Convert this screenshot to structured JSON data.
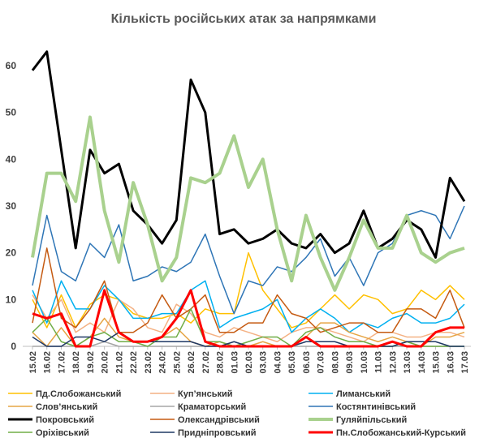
{
  "chart_data": {
    "type": "line",
    "title": "Кількість російських атак за напрямками",
    "categories": [
      "15.02",
      "16.02",
      "17.02",
      "18.02",
      "19.02",
      "20.02",
      "21.02",
      "22.02",
      "23.02",
      "24.02",
      "25.02",
      "26.02",
      "27.02",
      "28.02",
      "01.03",
      "02.03",
      "03.03",
      "04.03",
      "05.03",
      "06.03",
      "07.03",
      "08.03",
      "09.03",
      "10.03",
      "11.03",
      "12.03",
      "13.03",
      "14.03",
      "15.03",
      "16.03",
      "17.03"
    ],
    "ylim": [
      0,
      65
    ],
    "yticks": [
      0,
      10,
      20,
      30,
      40,
      50,
      60
    ],
    "grid": false,
    "series": [
      {
        "name": "Пд.Слобожанський",
        "color": "#ffc000",
        "line_width": 1.5,
        "values": [
          10,
          4,
          11,
          4,
          9,
          11,
          10,
          7,
          6,
          6,
          7,
          5,
          8,
          7,
          7,
          20,
          12,
          8,
          4,
          5,
          8,
          11,
          8,
          11,
          10,
          7,
          8,
          12,
          10,
          13,
          10
        ]
      },
      {
        "name": "Куп’янський",
        "color": "#f4b183",
        "line_width": 1.5,
        "values": [
          11,
          6,
          10,
          3,
          5,
          3,
          10,
          8,
          4,
          3,
          9,
          7,
          3,
          2,
          4,
          3,
          2,
          1,
          3,
          4,
          4,
          3,
          2,
          1,
          3,
          3,
          2,
          2,
          3,
          3,
          2
        ]
      },
      {
        "name": "Лиманський",
        "color": "#00b0f0",
        "line_width": 1.5,
        "values": [
          12,
          5,
          14,
          8,
          8,
          13,
          10,
          6,
          6,
          7,
          7,
          12,
          14,
          4,
          6,
          7,
          8,
          10,
          3,
          6,
          8,
          6,
          3,
          5,
          4,
          6,
          7,
          5,
          5,
          6,
          9
        ]
      },
      {
        "name": "Слов’янський",
        "color": "#e6a545",
        "line_width": 1.5,
        "values": [
          3,
          0,
          4,
          0,
          2,
          6,
          2,
          1,
          1,
          2,
          4,
          1,
          0,
          1,
          0,
          0,
          1,
          0,
          0,
          2,
          5,
          5,
          3,
          2,
          1,
          2,
          1,
          0,
          2,
          2,
          3
        ]
      },
      {
        "name": "Краматорський",
        "color": "#a5a5a5",
        "line_width": 1.5,
        "values": [
          0,
          0,
          0,
          0,
          0,
          1,
          0,
          0,
          0,
          0,
          0,
          0,
          0,
          0,
          0,
          0,
          0,
          0,
          0,
          0,
          0,
          0,
          0,
          0,
          0,
          0,
          0,
          0,
          0,
          0,
          0
        ]
      },
      {
        "name": "Костянтинівський",
        "color": "#2e75b6",
        "line_width": 1.5,
        "values": [
          13,
          28,
          16,
          14,
          22,
          19,
          26,
          14,
          15,
          17,
          16,
          18,
          24,
          15,
          7,
          14,
          13,
          17,
          16,
          19,
          23,
          15,
          19,
          13,
          20,
          22,
          28,
          29,
          28,
          23,
          30
        ]
      },
      {
        "name": "Покровський",
        "color": "#000000",
        "line_width": 3,
        "values": [
          59,
          63,
          42,
          21,
          42,
          37,
          39,
          29,
          26,
          22,
          27,
          57,
          50,
          24,
          25,
          22,
          23,
          25,
          22,
          21,
          24,
          20,
          22,
          29,
          21,
          23,
          27,
          25,
          19,
          36,
          31
        ]
      },
      {
        "name": "Олександрівський",
        "color": "#c55a11",
        "line_width": 1.5,
        "values": [
          5,
          21,
          6,
          4,
          8,
          14,
          3,
          3,
          5,
          11,
          6,
          8,
          11,
          3,
          3,
          5,
          5,
          11,
          7,
          6,
          3,
          4,
          5,
          5,
          3,
          3,
          8,
          8,
          6,
          12,
          4
        ]
      },
      {
        "name": "Гуляйпільський",
        "color": "#a9d18e",
        "line_width": 4,
        "values": [
          19,
          37,
          37,
          31,
          49,
          29,
          18,
          35,
          26,
          14,
          19,
          36,
          35,
          37,
          45,
          34,
          40,
          25,
          14,
          28,
          19,
          12,
          19,
          27,
          21,
          21,
          28,
          20,
          18,
          20,
          21
        ]
      },
      {
        "name": "Оріхівський",
        "color": "#70ad47",
        "line_width": 1.5,
        "values": [
          3,
          6,
          1,
          0,
          2,
          3,
          1,
          1,
          0,
          2,
          2,
          8,
          1,
          1,
          0,
          1,
          2,
          2,
          0,
          3,
          4,
          2,
          1,
          1,
          0,
          0,
          1,
          0,
          0,
          0,
          0
        ]
      },
      {
        "name": "Придніпровський",
        "color": "#1f3864",
        "line_width": 1.5,
        "values": [
          2,
          0,
          0,
          2,
          2,
          1,
          3,
          1,
          1,
          1,
          1,
          1,
          0,
          0,
          1,
          0,
          0,
          0,
          0,
          1,
          1,
          1,
          0,
          0,
          0,
          0,
          1,
          1,
          1,
          0,
          0
        ]
      },
      {
        "name": "Пн.Слобожанський-Курський",
        "color": "#ff0000",
        "line_width": 3,
        "values": [
          7,
          6,
          7,
          0,
          0,
          12,
          3,
          1,
          1,
          2,
          6,
          12,
          1,
          0,
          0,
          0,
          0,
          0,
          0,
          2,
          0,
          0,
          0,
          0,
          0,
          1,
          0,
          0,
          3,
          4,
          4
        ]
      }
    ]
  }
}
